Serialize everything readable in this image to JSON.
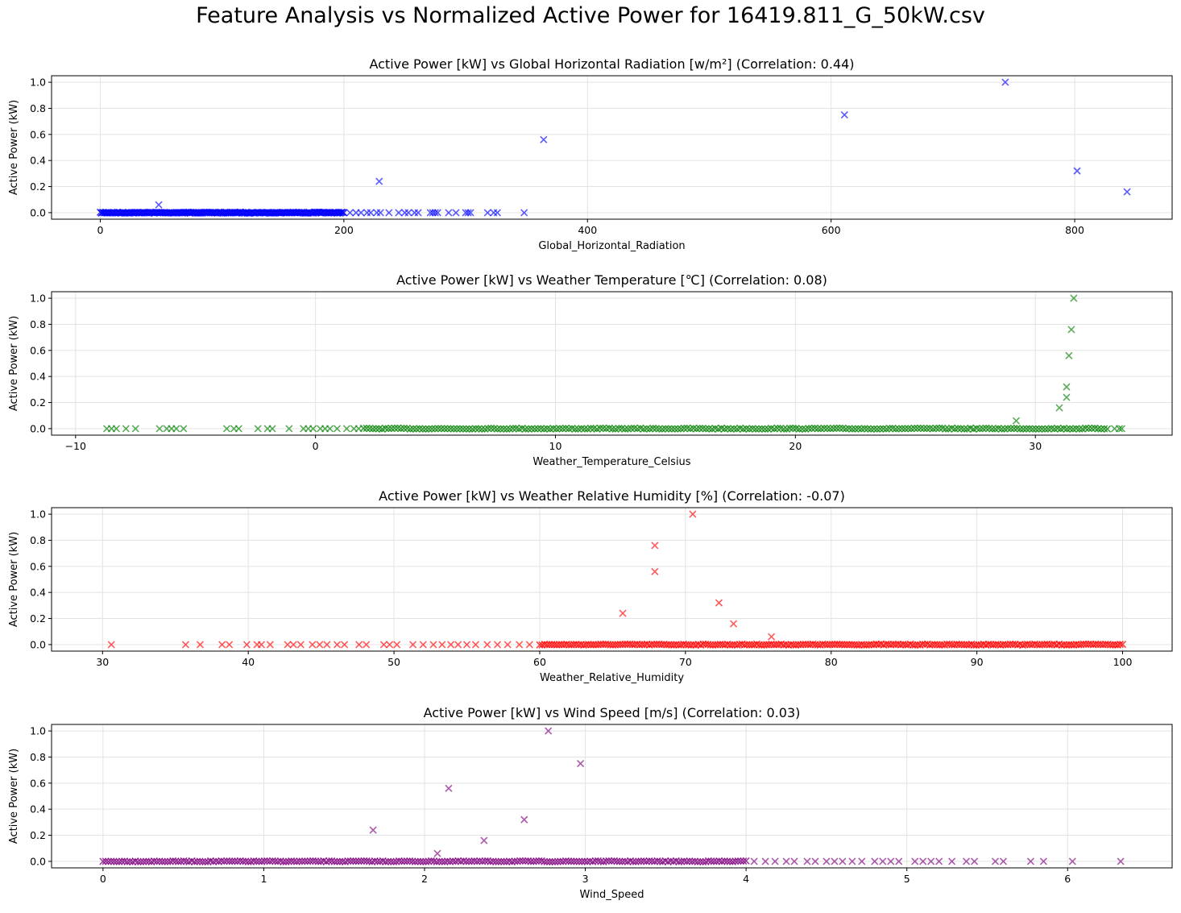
{
  "figure": {
    "title": "Feature Analysis vs Normalized Active Power for 16419.811_G_50kW.csv"
  },
  "chart_data": [
    {
      "type": "scatter",
      "title": "Active Power [kW] vs Global Horizontal Radiation [w/m²] (Correlation: 0.44)",
      "xlabel": "Global_Horizontal_Radiation",
      "ylabel": "Active Power (kW)",
      "xlim": [
        -40,
        880
      ],
      "ylim": [
        -0.05,
        1.05
      ],
      "xticks": [
        0,
        200,
        400,
        600,
        800
      ],
      "yticks": [
        0.0,
        0.2,
        0.4,
        0.6,
        0.8,
        1.0
      ],
      "xtick_labels": [
        "0",
        "200",
        "400",
        "600",
        "800"
      ],
      "ytick_labels": [
        "0.0",
        "0.2",
        "0.4",
        "0.6",
        "0.8",
        "1.0"
      ],
      "grid": true,
      "marker": "x",
      "color": "#0000ff",
      "zero_band": [
        0,
        200
      ],
      "points": [
        [
          48,
          0.06
        ],
        [
          229,
          0.24
        ],
        [
          364,
          0.56
        ],
        [
          611,
          0.75
        ],
        [
          743,
          1.0
        ],
        [
          802,
          0.32
        ],
        [
          843,
          0.16
        ],
        [
          205,
          0.0
        ],
        [
          210,
          0.0
        ],
        [
          214,
          0.0
        ],
        [
          219,
          0.0
        ],
        [
          222,
          0.0
        ],
        [
          227,
          0.0
        ],
        [
          230,
          0.0
        ],
        [
          237,
          0.0
        ],
        [
          245,
          0.0
        ],
        [
          250,
          0.0
        ],
        [
          253,
          0.0
        ],
        [
          258,
          0.0
        ],
        [
          261,
          0.0
        ],
        [
          271,
          0.0
        ],
        [
          273,
          0.0
        ],
        [
          275,
          0.0
        ],
        [
          277,
          0.0
        ],
        [
          286,
          0.0
        ],
        [
          292,
          0.0
        ],
        [
          300,
          0.0
        ],
        [
          302,
          0.0
        ],
        [
          304,
          0.0
        ],
        [
          318,
          0.0
        ],
        [
          323,
          0.0
        ],
        [
          326,
          0.0
        ],
        [
          348,
          0.0
        ]
      ]
    },
    {
      "type": "scatter",
      "title": "Active Power [kW] vs Weather Temperature [℃] (Correlation: 0.08)",
      "xlabel": "Weather_Temperature_Celsius",
      "ylabel": "Active Power (kW)",
      "xlim": [
        -11,
        35.7
      ],
      "ylim": [
        -0.05,
        1.05
      ],
      "xticks": [
        -10,
        0,
        10,
        20,
        30
      ],
      "yticks": [
        0.0,
        0.2,
        0.4,
        0.6,
        0.8,
        1.0
      ],
      "xtick_labels": [
        "−10",
        "0",
        "10",
        "20",
        "30"
      ],
      "ytick_labels": [
        "0.0",
        "0.2",
        "0.4",
        "0.6",
        "0.8",
        "1.0"
      ],
      "grid": true,
      "marker": "x",
      "color": "#008000",
      "zero_band": [
        2,
        33
      ],
      "points": [
        [
          29.2,
          0.06
        ],
        [
          31.0,
          0.16
        ],
        [
          31.3,
          0.24
        ],
        [
          31.3,
          0.32
        ],
        [
          31.4,
          0.56
        ],
        [
          31.5,
          0.76
        ],
        [
          31.6,
          1.0
        ],
        [
          -8.7,
          0.0
        ],
        [
          -8.5,
          0.0
        ],
        [
          -8.3,
          0.0
        ],
        [
          -7.9,
          0.0
        ],
        [
          -7.5,
          0.0
        ],
        [
          -6.5,
          0.0
        ],
        [
          -6.2,
          0.0
        ],
        [
          -6.0,
          0.0
        ],
        [
          -5.8,
          0.0
        ],
        [
          -5.5,
          0.0
        ],
        [
          -3.7,
          0.0
        ],
        [
          -3.4,
          0.0
        ],
        [
          -3.2,
          0.0
        ],
        [
          -2.4,
          0.0
        ],
        [
          -2.0,
          0.0
        ],
        [
          -1.8,
          0.0
        ],
        [
          -1.1,
          0.0
        ],
        [
          -0.5,
          0.0
        ],
        [
          -0.3,
          0.0
        ],
        [
          -0.1,
          0.0
        ],
        [
          0.2,
          0.0
        ],
        [
          0.4,
          0.0
        ],
        [
          0.6,
          0.0
        ],
        [
          0.9,
          0.0
        ],
        [
          1.3,
          0.0
        ],
        [
          1.6,
          0.0
        ],
        [
          1.8,
          0.0
        ],
        [
          33.3,
          0.0
        ],
        [
          33.5,
          0.0
        ],
        [
          33.6,
          0.0
        ]
      ]
    },
    {
      "type": "scatter",
      "title": "Active Power [kW] vs Weather Relative Humidity [%] (Correlation: -0.07)",
      "xlabel": "Weather_Relative_Humidity",
      "ylabel": "Active Power (kW)",
      "xlim": [
        26.5,
        103.4
      ],
      "ylim": [
        -0.05,
        1.05
      ],
      "xticks": [
        30,
        40,
        50,
        60,
        70,
        80,
        90,
        100
      ],
      "yticks": [
        0.0,
        0.2,
        0.4,
        0.6,
        0.8,
        1.0
      ],
      "xtick_labels": [
        "30",
        "40",
        "50",
        "60",
        "70",
        "80",
        "90",
        "100"
      ],
      "ytick_labels": [
        "0.0",
        "0.2",
        "0.4",
        "0.6",
        "0.8",
        "1.0"
      ],
      "grid": true,
      "marker": "x",
      "color": "#ff0000",
      "zero_band": [
        60,
        100
      ],
      "points": [
        [
          65.7,
          0.24
        ],
        [
          67.9,
          0.76
        ],
        [
          67.9,
          0.56
        ],
        [
          70.5,
          1.0
        ],
        [
          72.3,
          0.32
        ],
        [
          73.3,
          0.16
        ],
        [
          75.9,
          0.06
        ],
        [
          30.6,
          0.0
        ],
        [
          35.7,
          0.0
        ],
        [
          36.7,
          0.0
        ],
        [
          38.2,
          0.0
        ],
        [
          38.7,
          0.0
        ],
        [
          39.9,
          0.0
        ],
        [
          40.6,
          0.0
        ],
        [
          40.9,
          0.0
        ],
        [
          41.5,
          0.0
        ],
        [
          42.7,
          0.0
        ],
        [
          43.1,
          0.0
        ],
        [
          43.6,
          0.0
        ],
        [
          44.4,
          0.0
        ],
        [
          44.9,
          0.0
        ],
        [
          45.4,
          0.0
        ],
        [
          46.1,
          0.0
        ],
        [
          46.6,
          0.0
        ],
        [
          47.6,
          0.0
        ],
        [
          48.1,
          0.0
        ],
        [
          49.3,
          0.0
        ],
        [
          49.7,
          0.0
        ],
        [
          50.2,
          0.0
        ],
        [
          51.3,
          0.0
        ],
        [
          52.0,
          0.0
        ],
        [
          52.7,
          0.0
        ],
        [
          53.3,
          0.0
        ],
        [
          53.9,
          0.0
        ],
        [
          54.4,
          0.0
        ],
        [
          55.0,
          0.0
        ],
        [
          55.6,
          0.0
        ],
        [
          56.4,
          0.0
        ],
        [
          57.1,
          0.0
        ],
        [
          57.8,
          0.0
        ],
        [
          58.6,
          0.0
        ],
        [
          59.3,
          0.0
        ]
      ]
    },
    {
      "type": "scatter",
      "title": "Active Power [kW] vs Wind Speed [m/s] (Correlation: 0.03)",
      "xlabel": "Wind_Speed",
      "ylabel": "Active Power (kW)",
      "xlim": [
        -0.32,
        6.65
      ],
      "ylim": [
        -0.05,
        1.05
      ],
      "xticks": [
        0,
        1,
        2,
        3,
        4,
        5,
        6
      ],
      "yticks": [
        0.0,
        0.2,
        0.4,
        0.6,
        0.8,
        1.0
      ],
      "xtick_labels": [
        "0",
        "1",
        "2",
        "3",
        "4",
        "5",
        "6"
      ],
      "ytick_labels": [
        "0.0",
        "0.2",
        "0.4",
        "0.6",
        "0.8",
        "1.0"
      ],
      "grid": true,
      "marker": "x",
      "color": "#800080",
      "zero_band": [
        0,
        4.0
      ],
      "points": [
        [
          1.68,
          0.24
        ],
        [
          2.08,
          0.06
        ],
        [
          2.15,
          0.56
        ],
        [
          2.37,
          0.16
        ],
        [
          2.62,
          0.32
        ],
        [
          2.77,
          1.0
        ],
        [
          2.97,
          0.75
        ],
        [
          4.05,
          0.0
        ],
        [
          4.12,
          0.0
        ],
        [
          4.18,
          0.0
        ],
        [
          4.25,
          0.0
        ],
        [
          4.3,
          0.0
        ],
        [
          4.38,
          0.0
        ],
        [
          4.43,
          0.0
        ],
        [
          4.5,
          0.0
        ],
        [
          4.55,
          0.0
        ],
        [
          4.6,
          0.0
        ],
        [
          4.66,
          0.0
        ],
        [
          4.72,
          0.0
        ],
        [
          4.8,
          0.0
        ],
        [
          4.85,
          0.0
        ],
        [
          4.9,
          0.0
        ],
        [
          4.95,
          0.0
        ],
        [
          5.05,
          0.0
        ],
        [
          5.1,
          0.0
        ],
        [
          5.15,
          0.0
        ],
        [
          5.2,
          0.0
        ],
        [
          5.28,
          0.0
        ],
        [
          5.37,
          0.0
        ],
        [
          5.42,
          0.0
        ],
        [
          5.55,
          0.0
        ],
        [
          5.6,
          0.0
        ],
        [
          5.77,
          0.0
        ],
        [
          5.85,
          0.0
        ],
        [
          6.03,
          0.0
        ],
        [
          6.33,
          0.0
        ]
      ]
    }
  ]
}
